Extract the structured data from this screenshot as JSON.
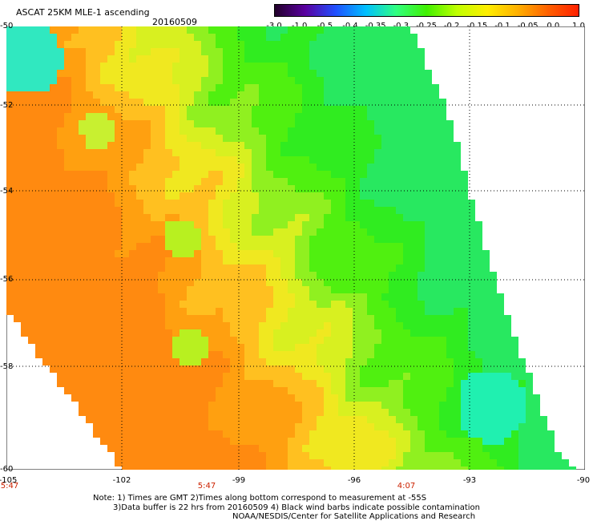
{
  "header": {
    "title": "ASCAT 25KM MLE-1 ascending",
    "date": "20160509"
  },
  "colorbar": {
    "ticks": [
      "-3.0",
      "-1.0",
      "-0.5",
      "-0.4",
      "-0.35",
      "-0.3",
      "-0.25",
      "-0.2",
      "-0.15",
      "-0.1",
      "-0.05",
      "0.0",
      "1.0"
    ],
    "colors": [
      "#22002a",
      "#5a00a0",
      "#2050ff",
      "#00c0ff",
      "#30ff80",
      "#40f000",
      "#c0ff00",
      "#ffee00",
      "#ffb000",
      "#ff6000",
      "#ff2000"
    ]
  },
  "map": {
    "lat_labels": [
      "-50",
      "-52",
      "-54",
      "-56",
      "-58",
      "-60"
    ],
    "lon_labels": [
      "-105",
      "-102",
      "-99",
      "-96",
      "-93",
      "-90"
    ],
    "time_labels": [
      "5:47",
      "5:47",
      "4:07"
    ]
  },
  "notes": {
    "line1": "Note: 1) Times are GMT 2)Times along bottom correspond to measurement at -55S",
    "line2": "3)Data buffer is 22 hrs from 20160509 4) Black wind barbs indicate possible contamination",
    "line3": "NOAA/NESDIS/Center for Satellite Applications and Research"
  }
}
